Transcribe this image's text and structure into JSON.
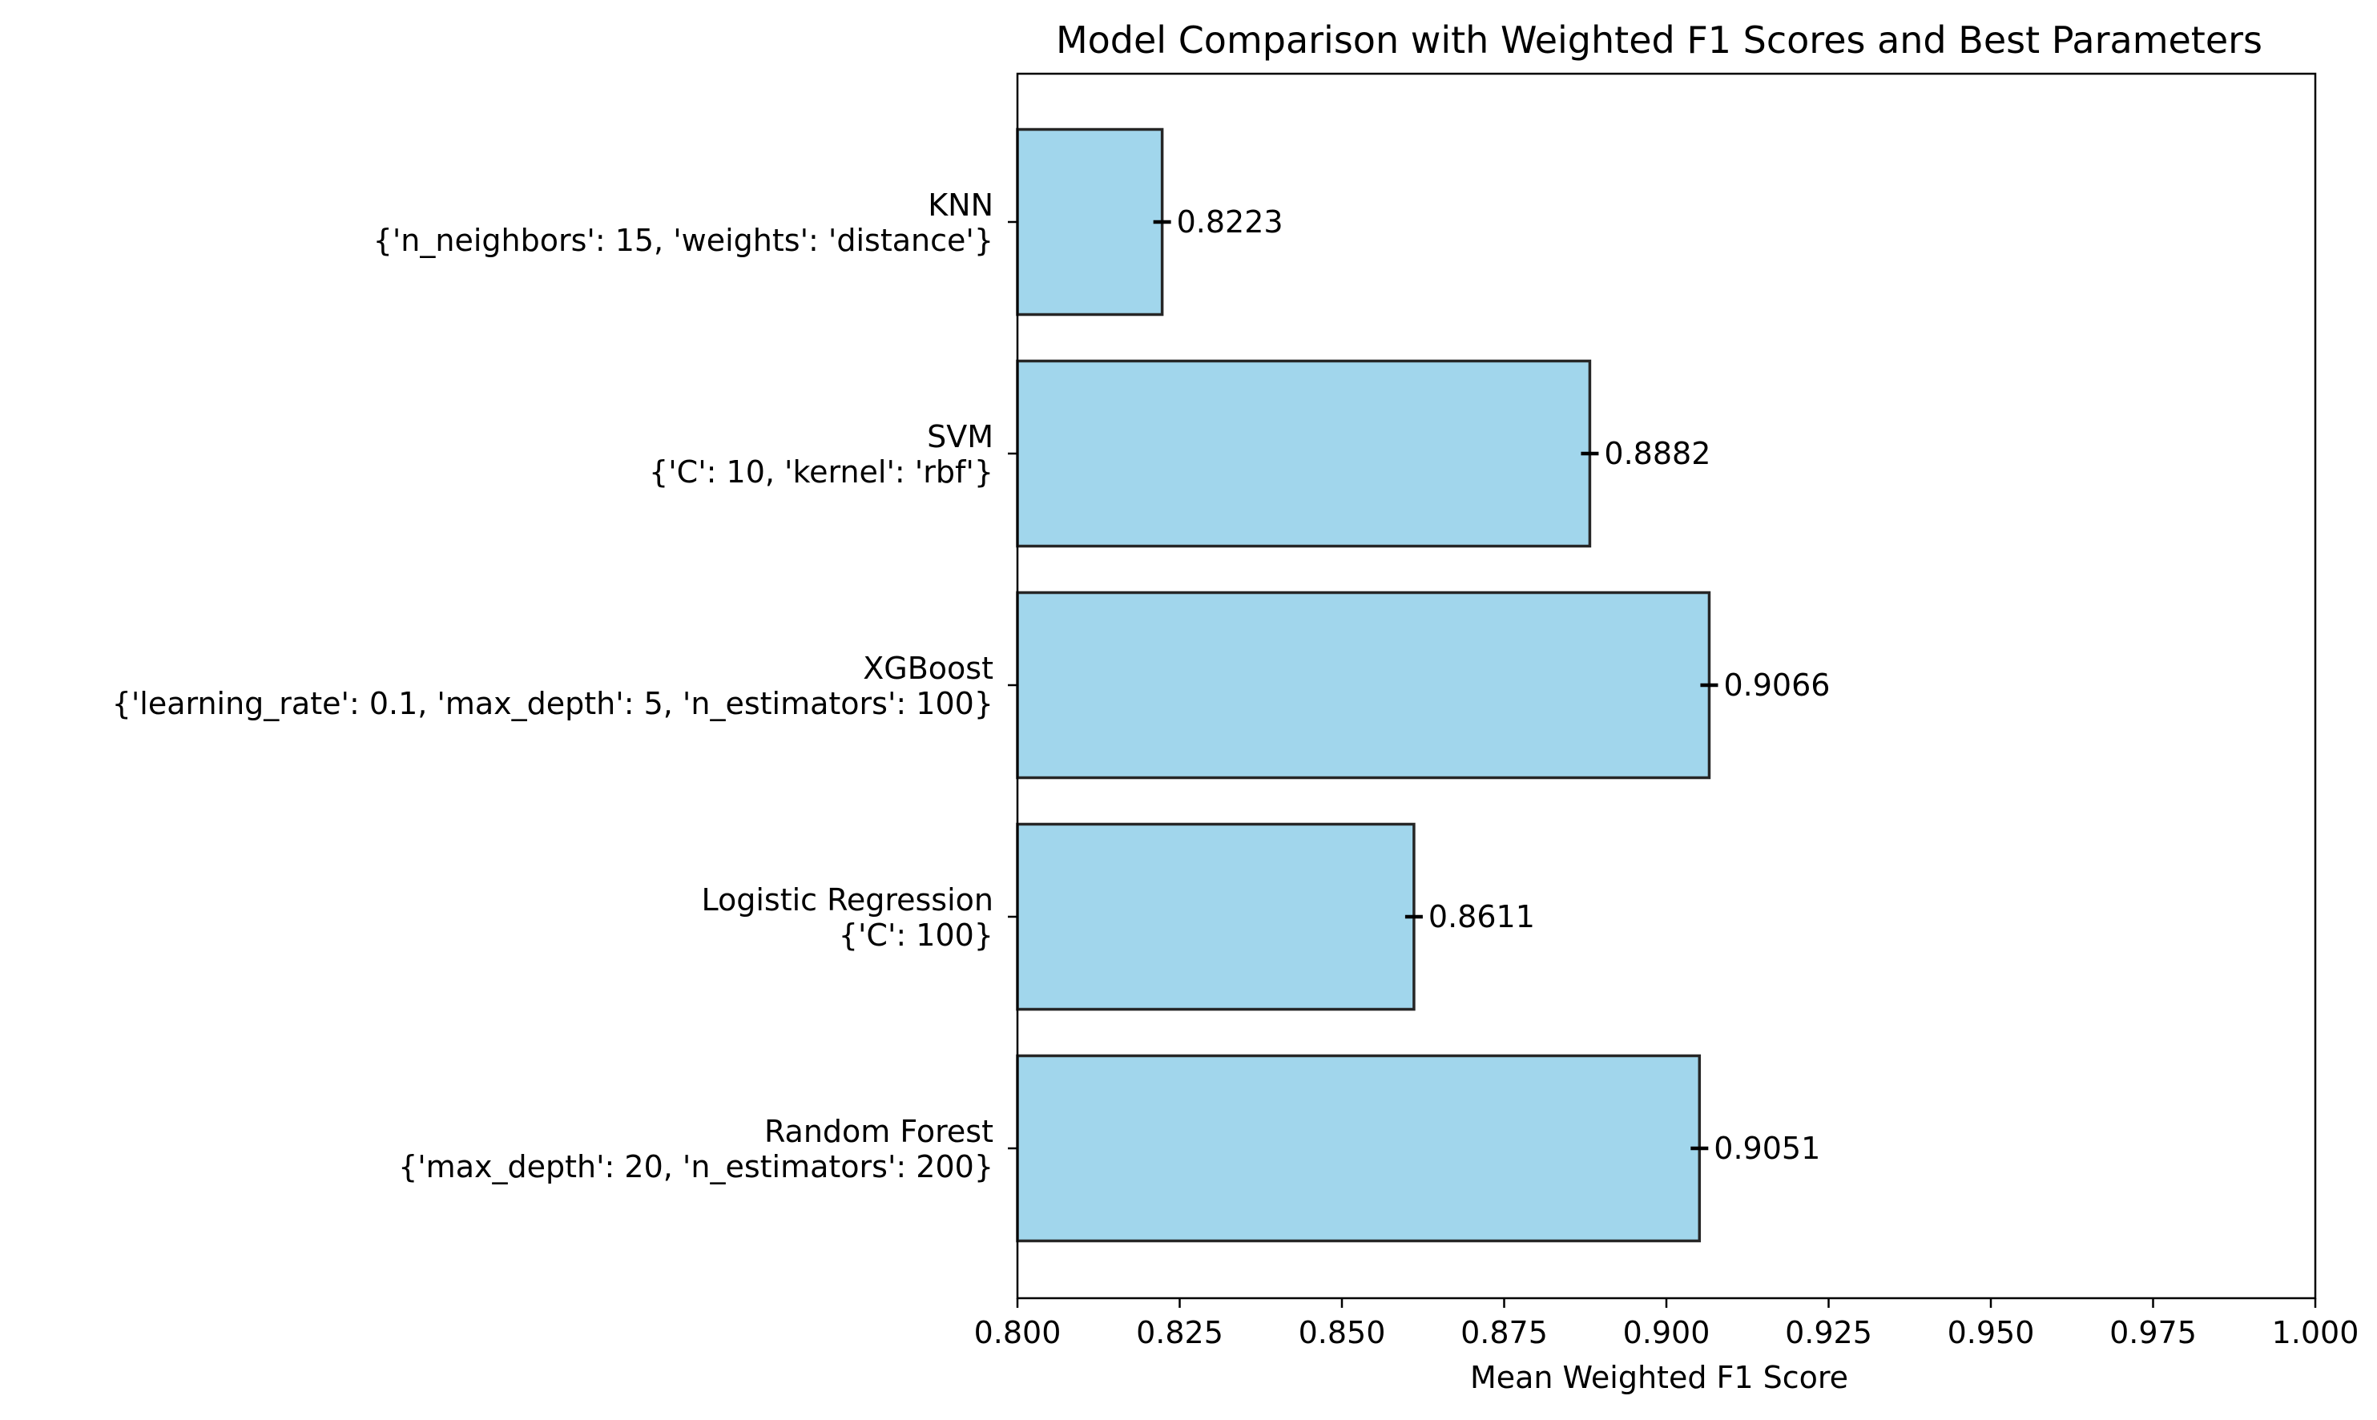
{
  "chart_data": {
    "type": "bar",
    "orientation": "horizontal",
    "title": "Model Comparison with Weighted F1 Scores and Best Parameters",
    "xlabel": "Mean Weighted F1 Score",
    "ylabel": "",
    "xlim": [
      0.8,
      1.0
    ],
    "xticks": [
      0.8,
      0.825,
      0.85,
      0.875,
      0.9,
      0.925,
      0.95,
      0.975,
      1.0
    ],
    "xtick_labels": [
      "0.800",
      "0.825",
      "0.850",
      "0.875",
      "0.900",
      "0.925",
      "0.950",
      "0.975",
      "1.000"
    ],
    "grid": false,
    "bar_color": "#a1d6ec",
    "bar_edge_color": "#262626",
    "bars": [
      {
        "name": "KNN",
        "params": "{'n_neighbors': 15, 'weights': 'distance'}",
        "value": 0.8223,
        "value_label": "0.8223"
      },
      {
        "name": "SVM",
        "params": "{'C': 10, 'kernel': 'rbf'}",
        "value": 0.8882,
        "value_label": "0.8882"
      },
      {
        "name": "XGBoost",
        "params": "{'learning_rate': 0.1, 'max_depth': 5, 'n_estimators': 100}",
        "value": 0.9066,
        "value_label": "0.9066"
      },
      {
        "name": "Logistic Regression",
        "params": "{'C': 100}",
        "value": 0.8611,
        "value_label": "0.8611"
      },
      {
        "name": "Random Forest",
        "params": "{'max_depth': 20, 'n_estimators': 200}",
        "value": 0.9051,
        "value_label": "0.9051"
      }
    ]
  }
}
